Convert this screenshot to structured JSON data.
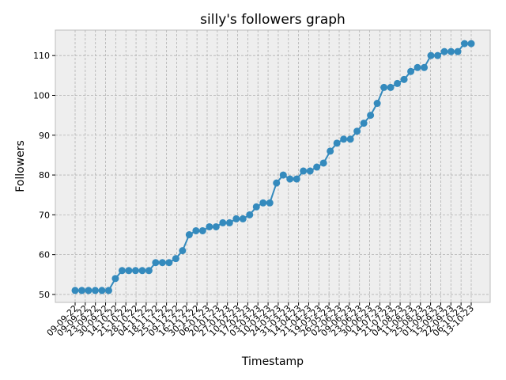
{
  "chart_data": {
    "type": "line",
    "title": "silly's followers graph",
    "x_label": "Timestamp",
    "y_label": "Followers",
    "color": "#348ABD",
    "grid": true,
    "values": [
      51,
      51,
      51,
      51,
      51,
      51,
      54,
      56,
      56,
      56,
      56,
      56,
      58,
      58,
      58,
      59,
      61,
      65,
      66,
      66,
      67,
      67,
      68,
      68,
      69,
      69,
      70,
      72,
      73,
      73,
      78,
      80,
      79,
      79,
      81,
      81,
      82,
      83,
      86,
      88,
      89,
      89,
      91,
      93,
      95,
      98,
      102,
      102,
      103,
      104,
      106,
      107,
      107,
      110,
      110,
      111,
      111,
      111,
      113,
      113
    ],
    "xticks": [
      "09-09-22",
      "09-09-22",
      "23-09-22",
      "30-09-22",
      "14-10-22",
      "21-10-22",
      "28-10-22",
      "04-11-22",
      "18-11-22",
      "25-11-22",
      "09-12-22",
      "16-12-22",
      "30-12-22",
      "06-01-23",
      "20-01-23",
      "27-01-23",
      "10-02-23",
      "17-02-23",
      "03-03-23",
      "10-03-23",
      "24-03-23",
      "31-03-23",
      "14-04-23",
      "21-04-23",
      "19-05-23",
      "26-05-23",
      "02-06-23",
      "09-06-23",
      "23-06-23",
      "30-06-23",
      "14-07-23",
      "21-07-23",
      "04-08-23",
      "11-08-23",
      "25-08-23",
      "01-09-23",
      "15-09-23",
      "22-09-23",
      "06-10-23",
      "13-10-23"
    ],
    "ylim": [
      48,
      116.4
    ],
    "yticks": [
      50,
      60,
      70,
      80,
      90,
      100,
      110
    ]
  }
}
